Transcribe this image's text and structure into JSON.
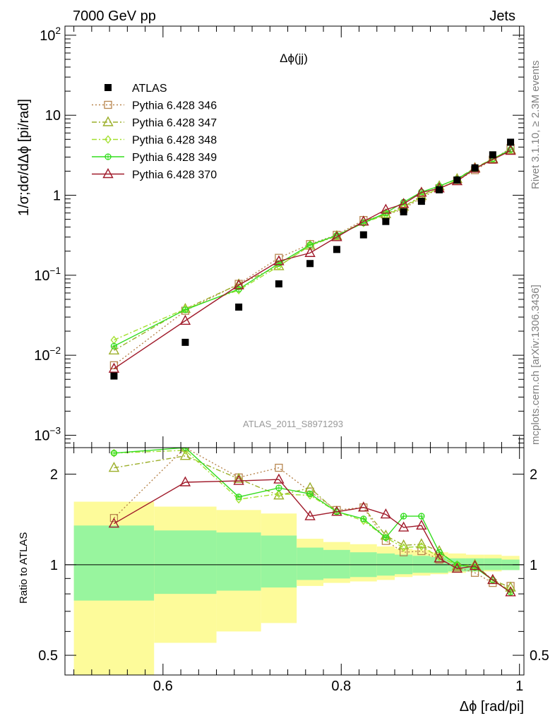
{
  "header": {
    "left": "7000 GeV pp",
    "right": "Jets",
    "side_top": "Rivet 3.1.10, ≥ 2.3M events",
    "side_bottom": "mcplots.cern.ch [arXiv:1306.3436]",
    "analysis": "ATLAS_2011_S8971293"
  },
  "chart_data": [
    {
      "type": "scatter",
      "title": "Δϕ(jj)",
      "ylabel": "1/σ;dσ/dΔϕ [pi/rad]",
      "yscale": "log",
      "ylim": [
        0.0007,
        130
      ],
      "yticks": [
        {
          "value": 0.001,
          "label": "10",
          "exp": "−3"
        },
        {
          "value": 0.01,
          "label": "10",
          "exp": "−2"
        },
        {
          "value": 0.1,
          "label": "10",
          "exp": "−1"
        },
        {
          "value": 1,
          "label": "1",
          "exp": ""
        },
        {
          "value": 10,
          "label": "10",
          "exp": ""
        },
        {
          "value": 100,
          "label": "10",
          "exp": "2"
        }
      ],
      "xlim": [
        0.49,
        1.005
      ],
      "legend_position": "top-left",
      "x": [
        0.545,
        0.625,
        0.685,
        0.73,
        0.765,
        0.795,
        0.825,
        0.85,
        0.87,
        0.89,
        0.91,
        0.93,
        0.95,
        0.97,
        0.99
      ],
      "series": [
        {
          "name": "ATLAS",
          "color": "#000000",
          "marker": "filled-square",
          "values": [
            0.0055,
            0.0145,
            0.04,
            0.078,
            0.14,
            0.21,
            0.32,
            0.47,
            0.62,
            0.84,
            1.17,
            1.55,
            2.2,
            3.2,
            4.6
          ]
        },
        {
          "name": "Pythia 6.428 346",
          "color": "#b8864f",
          "marker": "open-square",
          "line": "dotted",
          "values": [
            0.0075,
            0.036,
            0.078,
            0.165,
            0.245,
            0.32,
            0.49,
            0.56,
            0.68,
            0.93,
            1.22,
            1.52,
            2.06,
            2.78,
            3.9
          ]
        },
        {
          "name": "Pythia 6.428 347",
          "color": "#9caf2a",
          "marker": "open-triangle",
          "line": "dashdot",
          "values": [
            0.0115,
            0.038,
            0.077,
            0.13,
            0.235,
            0.31,
            0.47,
            0.58,
            0.72,
            0.98,
            1.3,
            1.6,
            2.2,
            2.86,
            3.7
          ]
        },
        {
          "name": "Pythia 6.428 348",
          "color": "#a3e02f",
          "marker": "open-diamond",
          "line": "dashdot",
          "values": [
            0.0155,
            0.038,
            0.065,
            0.13,
            0.235,
            0.315,
            0.45,
            0.57,
            0.7,
            0.97,
            1.22,
            1.55,
            2.15,
            2.85,
            3.7
          ]
        },
        {
          "name": "Pythia 6.428 349",
          "color": "#33dd1f",
          "marker": "open-circle-cross",
          "line": "solid",
          "values": [
            0.013,
            0.037,
            0.067,
            0.14,
            0.24,
            0.315,
            0.45,
            0.6,
            0.82,
            1.1,
            1.3,
            1.6,
            2.15,
            2.85,
            3.72
          ]
        },
        {
          "name": "Pythia 6.428 370",
          "color": "#a01a2a",
          "marker": "open-triangle",
          "line": "solid",
          "values": [
            0.0068,
            0.027,
            0.075,
            0.15,
            0.19,
            0.3,
            0.47,
            0.66,
            0.78,
            1.08,
            1.22,
            1.5,
            2.15,
            2.8,
            3.6
          ]
        }
      ]
    },
    {
      "type": "scatter",
      "ylabel": "Ratio to ATLAS",
      "xlabel": "Δϕ [rad/pi]",
      "yscale": "log",
      "ylim": [
        0.43,
        2.45
      ],
      "yticks": [
        0.5,
        1,
        2
      ],
      "xticks": [
        0.6,
        0.8,
        1
      ],
      "xlim": [
        0.49,
        1.005
      ],
      "reference_line": 1,
      "bands": {
        "edges": [
          0.5,
          0.59,
          0.66,
          0.71,
          0.75,
          0.78,
          0.81,
          0.84,
          0.86,
          0.88,
          0.9,
          0.92,
          0.94,
          0.96,
          0.98,
          1.0
        ],
        "outer_upper": [
          1.62,
          1.56,
          1.52,
          1.48,
          1.22,
          1.19,
          1.17,
          1.15,
          1.13,
          1.12,
          1.1,
          1.09,
          1.08,
          1.08,
          1.07
        ],
        "outer_lower": [
          0.43,
          0.55,
          0.6,
          0.64,
          0.85,
          0.87,
          0.88,
          0.89,
          0.91,
          0.92,
          0.93,
          0.94,
          0.95,
          0.95,
          0.96
        ],
        "inner_upper": [
          1.35,
          1.3,
          1.28,
          1.25,
          1.14,
          1.12,
          1.1,
          1.09,
          1.08,
          1.07,
          1.06,
          1.05,
          1.05,
          1.05,
          1.04
        ],
        "inner_lower": [
          0.76,
          0.8,
          0.82,
          0.84,
          0.89,
          0.9,
          0.91,
          0.92,
          0.93,
          0.94,
          0.94,
          0.95,
          0.95,
          0.96,
          0.96
        ],
        "outer_color": "#fdfb9a",
        "inner_color": "#98f59e"
      },
      "series": [
        {
          "name": "Pythia 6.428 346",
          "values": [
            1.43,
            2.45,
            1.95,
            2.1,
            1.75,
            1.52,
            1.55,
            1.2,
            1.1,
            1.11,
            1.04,
            0.98,
            0.94,
            0.87,
            0.85
          ]
        },
        {
          "name": "Pythia 6.428 347",
          "values": [
            2.1,
            2.3,
            1.93,
            1.7,
            1.8,
            1.5,
            1.55,
            1.25,
            1.16,
            1.17,
            1.11,
            0.99,
            1.0,
            0.89,
            0.84
          ]
        },
        {
          "name": "Pythia 6.428 348",
          "values": [
            2.35,
            2.4,
            1.65,
            1.72,
            1.7,
            1.5,
            1.4,
            1.23,
            1.14,
            1.15,
            1.06,
            1.0,
            0.98,
            0.89,
            0.82
          ]
        },
        {
          "name": "Pythia 6.428 349",
          "values": [
            2.35,
            2.45,
            1.68,
            1.8,
            1.72,
            1.5,
            1.42,
            1.23,
            1.45,
            1.45,
            1.1,
            1.0,
            0.98,
            0.89,
            0.81
          ]
        },
        {
          "name": "Pythia 6.428 370",
          "values": [
            1.37,
            1.88,
            1.9,
            1.92,
            1.45,
            1.5,
            1.55,
            1.47,
            1.33,
            1.35,
            1.05,
            0.97,
            0.99,
            0.89,
            0.81
          ]
        }
      ]
    }
  ]
}
